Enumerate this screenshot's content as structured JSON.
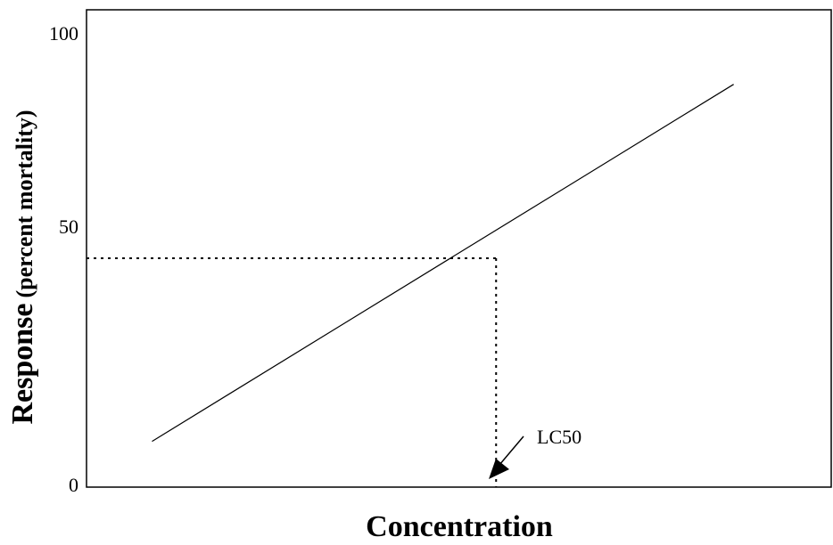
{
  "chart_data": {
    "type": "line",
    "title": "",
    "xlabel": "Concentration",
    "ylabel": {
      "main": "Response",
      "sub": "(percent mortality)"
    },
    "yticks": [
      "0",
      "50",
      "100"
    ],
    "ylim": [
      0,
      100
    ],
    "xlim": [
      0,
      100
    ],
    "series": [
      {
        "x": [
          8.8,
          86.9
        ],
        "y": [
          10,
          88
        ]
      }
    ],
    "reference": {
      "x": 55,
      "y": 50,
      "style": "dotted"
    },
    "annotation": {
      "text": "LC50",
      "points_to": "x-axis at reference x"
    },
    "grid": false,
    "legend": "none"
  }
}
